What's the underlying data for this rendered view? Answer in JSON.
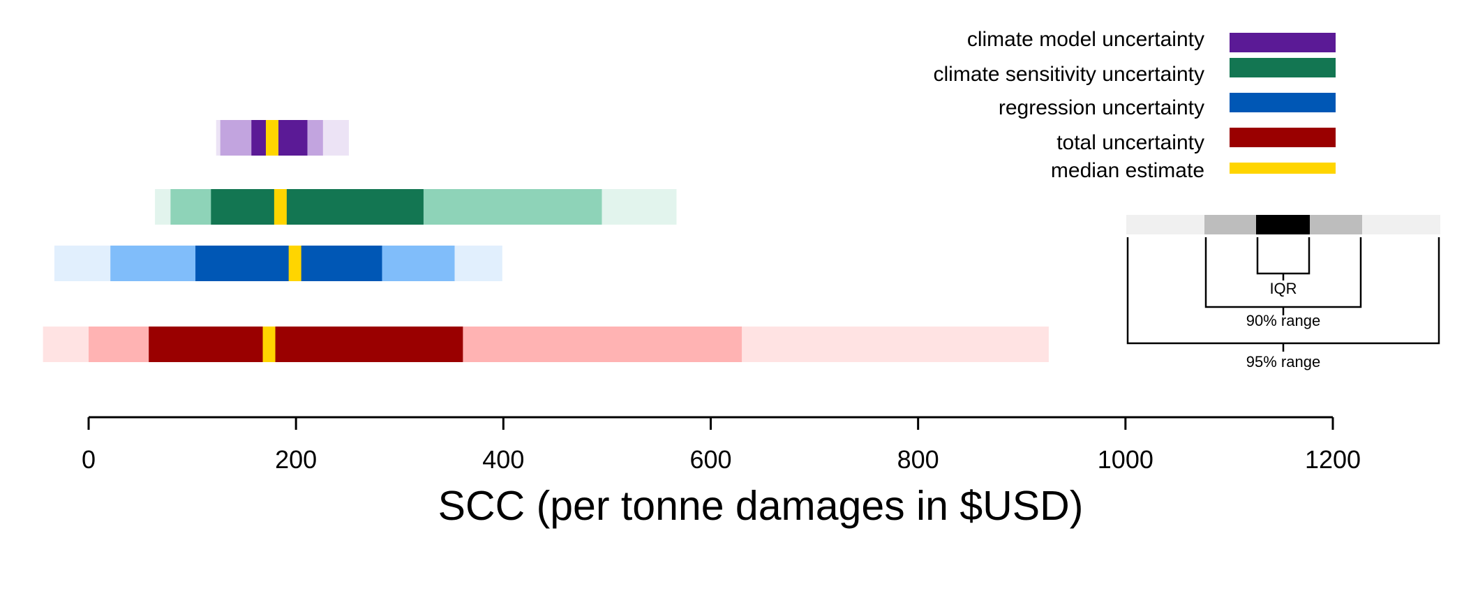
{
  "chart_data": {
    "type": "bar",
    "subtype": "horizontal-uncertainty-range",
    "xlabel": "SCC (per tonne damages in $USD)",
    "ylabel": "",
    "xlim": [
      0,
      1200
    ],
    "xticks": [
      0,
      200,
      400,
      600,
      800,
      1000,
      1200
    ],
    "xtick_labels": [
      "0",
      "200",
      "400",
      "600",
      "800",
      "1000",
      "1200"
    ],
    "grid": false,
    "legend_position": "top-right",
    "series": [
      {
        "name": "climate model uncertainty",
        "color": "#5b1a96",
        "color_90": "#c2a4df",
        "color_95": "#ece3f5",
        "median": 177,
        "iqr": [
          157,
          211
        ],
        "range90": [
          127,
          226
        ],
        "range95": [
          123,
          251
        ]
      },
      {
        "name": "climate sensitivity uncertainty",
        "color": "#137652",
        "color_90": "#8ed3b8",
        "color_95": "#e2f4ed",
        "median": 185,
        "iqr": [
          118,
          323
        ],
        "range90": [
          79,
          495
        ],
        "range95": [
          64,
          567
        ]
      },
      {
        "name": "regression uncertainty",
        "color": "#0057b5",
        "color_90": "#80bdfa",
        "color_95": "#e1effd",
        "median": 199,
        "iqr": [
          103,
          283
        ],
        "range90": [
          21,
          353
        ],
        "range95": [
          -33,
          399
        ]
      },
      {
        "name": "total uncertainty",
        "color": "#9a0000",
        "color_90": "#ffb3b3",
        "color_95": "#ffe3e3",
        "median": 174,
        "iqr": [
          58,
          361
        ],
        "range90": [
          0,
          630
        ],
        "range95": [
          -44,
          926
        ]
      }
    ],
    "median_label": "median estimate",
    "median_color": "#ffd500",
    "key": {
      "iqr_label": "IQR",
      "range90_label": "90% range",
      "range95_label": "95% range",
      "color_iqr": "#000000",
      "color_90": "#bdbdbd",
      "color_95": "#f0f0f0"
    }
  }
}
